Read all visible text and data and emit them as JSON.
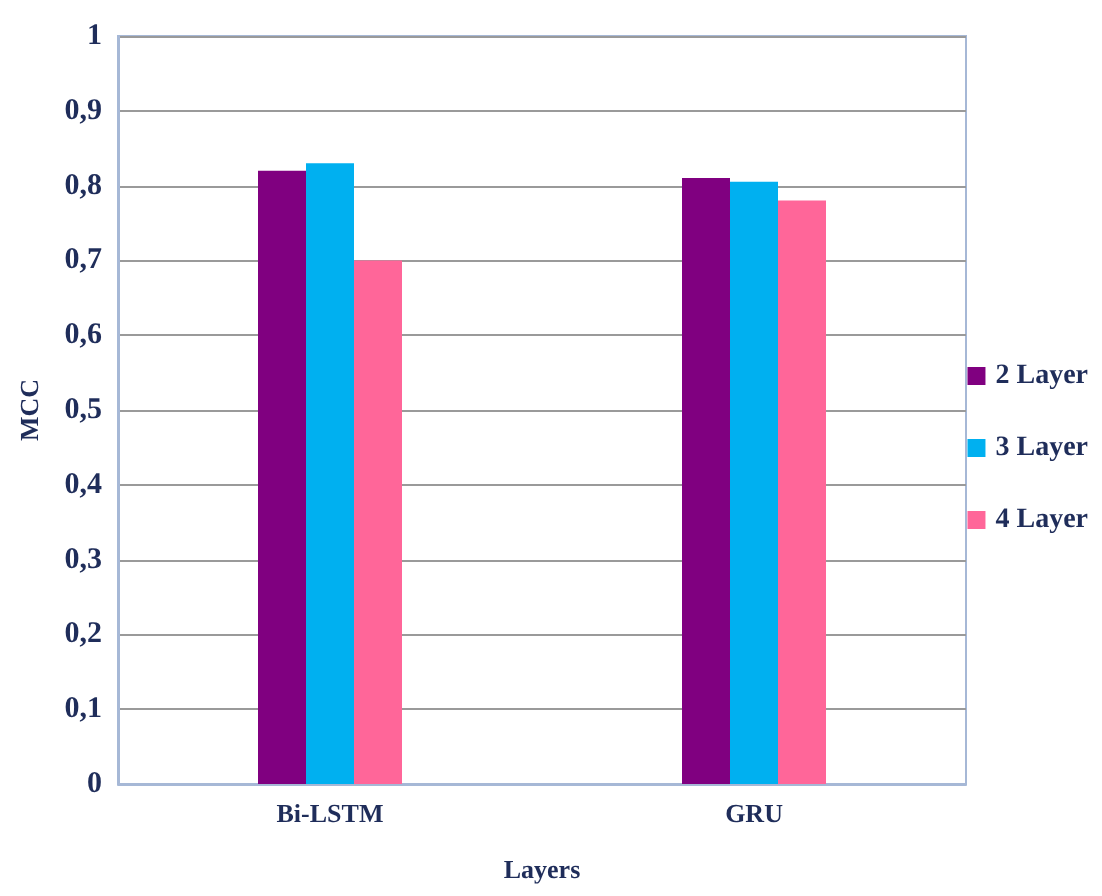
{
  "chart_data": {
    "type": "bar",
    "xlabel": "Layers",
    "ylabel": "MCC",
    "categories": [
      "Bi-LSTM",
      "GRU"
    ],
    "series": [
      {
        "name": "2 Layer",
        "color": "#800080",
        "values": [
          0.82,
          0.81
        ]
      },
      {
        "name": "3 Layer",
        "color": "#00b0f0",
        "values": [
          0.83,
          0.805
        ]
      },
      {
        "name": "4 Layer",
        "color": "#ff6699",
        "values": [
          0.7,
          0.78
        ]
      }
    ],
    "ylim": [
      0,
      1
    ],
    "yticks": [
      0,
      {
        "value": 0.1,
        "label": "0,1"
      },
      {
        "value": 0.2,
        "label": "0,2"
      },
      {
        "value": 0.3,
        "label": "0,3"
      },
      {
        "value": 0.4,
        "label": "0,4"
      },
      {
        "value": 0.5,
        "label": "0,5"
      },
      {
        "value": 0.6,
        "label": "0,6"
      },
      {
        "value": 0.7,
        "label": "0,7"
      },
      {
        "value": 0.8,
        "label": "0,8"
      },
      {
        "value": 0.9,
        "label": "0,9"
      },
      1
    ],
    "grid": "y",
    "legend": "right"
  }
}
